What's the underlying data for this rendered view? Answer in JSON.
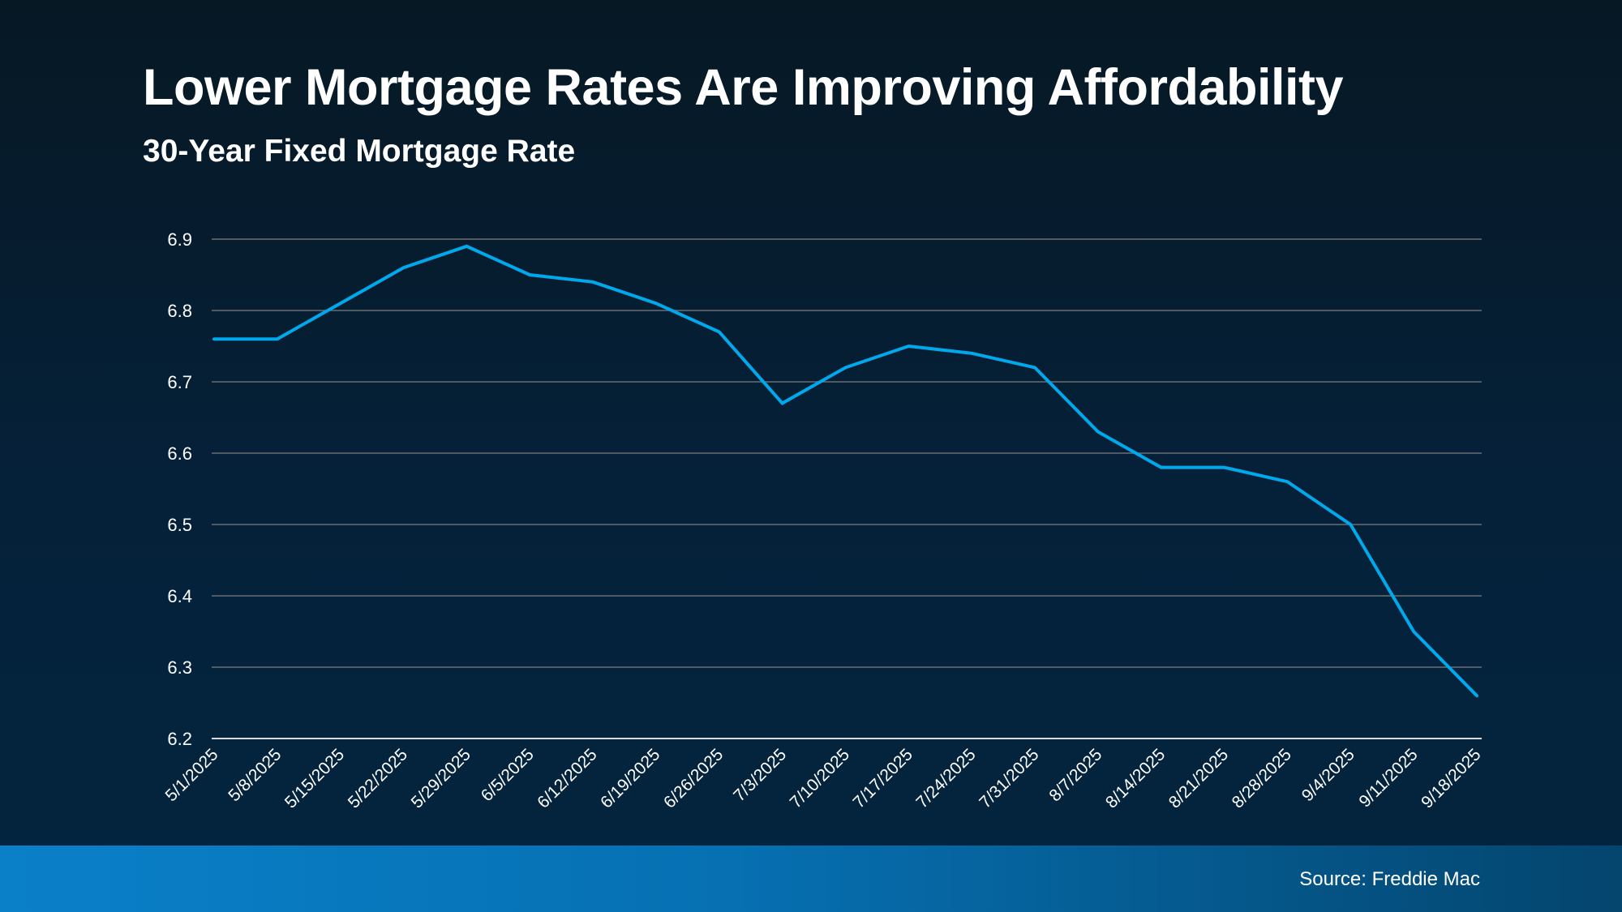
{
  "chart_data": {
    "type": "line",
    "title": "Lower Mortgage Rates Are Improving Affordability",
    "subtitle": "30-Year Fixed Mortgage Rate",
    "xlabel": "",
    "ylabel": "",
    "categories": [
      "5/1/2025",
      "5/8/2025",
      "5/15/2025",
      "5/22/2025",
      "5/29/2025",
      "6/5/2025",
      "6/12/2025",
      "6/19/2025",
      "6/26/2025",
      "7/3/2025",
      "7/10/2025",
      "7/17/2025",
      "7/24/2025",
      "7/31/2025",
      "8/7/2025",
      "8/14/2025",
      "8/21/2025",
      "8/28/2025",
      "9/4/2025",
      "9/11/2025",
      "9/18/2025"
    ],
    "series": [
      {
        "values": [
          6.76,
          6.76,
          6.81,
          6.86,
          6.89,
          6.85,
          6.84,
          6.81,
          6.77,
          6.67,
          6.72,
          6.75,
          6.74,
          6.72,
          6.63,
          6.58,
          6.58,
          6.56,
          6.5,
          6.35,
          6.26
        ],
        "color": "#00a9ec"
      }
    ],
    "ylim": [
      6.2,
      6.9
    ],
    "yticks": [
      "6.2",
      "6.3",
      "6.4",
      "6.5",
      "6.6",
      "6.7",
      "6.8",
      "6.9"
    ],
    "grid": true,
    "legend": "none",
    "source": "Source: Freddie Mac"
  },
  "colors": {
    "background": "#05213a",
    "line": "#00a9ec",
    "grid": "#6b6f73",
    "footer": "#0a80c9"
  }
}
